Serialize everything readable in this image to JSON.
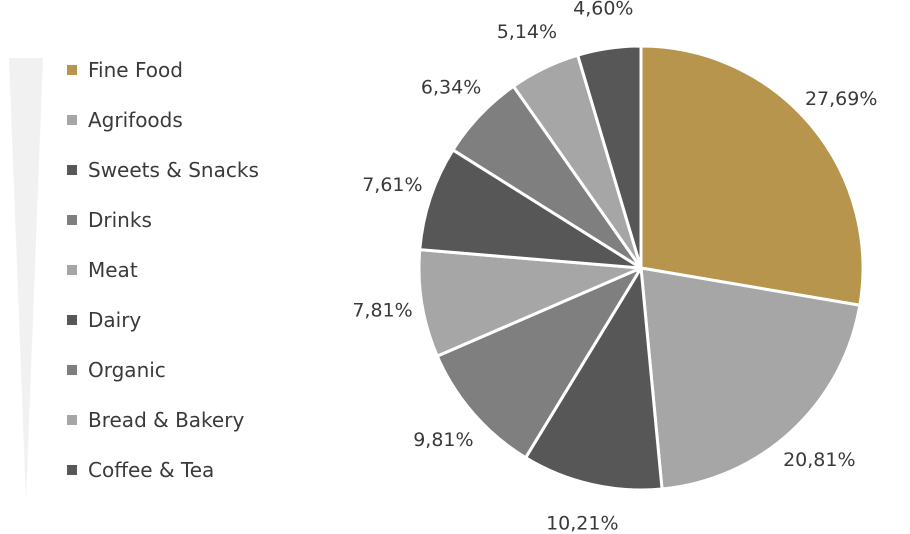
{
  "chart_data": {
    "type": "pie",
    "start_angle_deg": 0,
    "direction": "clockwise",
    "slices": [
      {
        "label": "Fine Food",
        "value": 27.69,
        "value_label": "27,69%",
        "color": "#b8954c"
      },
      {
        "label": "Agrifoods",
        "value": 20.81,
        "value_label": "20,81%",
        "color": "#a6a6a6"
      },
      {
        "label": "Sweets & Snacks",
        "value": 10.21,
        "value_label": "10,21%",
        "color": "#575757"
      },
      {
        "label": "Drinks",
        "value": 9.81,
        "value_label": "9,81%",
        "color": "#7f7f7f"
      },
      {
        "label": "Meat",
        "value": 7.81,
        "value_label": "7,81%",
        "color": "#a6a6a6"
      },
      {
        "label": "Dairy",
        "value": 7.61,
        "value_label": "7,61%",
        "color": "#575757"
      },
      {
        "label": "Organic",
        "value": 6.34,
        "value_label": "6,34%",
        "color": "#7f7f7f"
      },
      {
        "label": "Bread & Bakery",
        "value": 5.14,
        "value_label": "5,14%",
        "color": "#a6a6a6"
      },
      {
        "label": "Coffee & Tea",
        "value": 4.6,
        "value_label": "4,60%",
        "color": "#575757"
      }
    ],
    "legend_position": "left",
    "slice_border_color": "#ffffff"
  }
}
